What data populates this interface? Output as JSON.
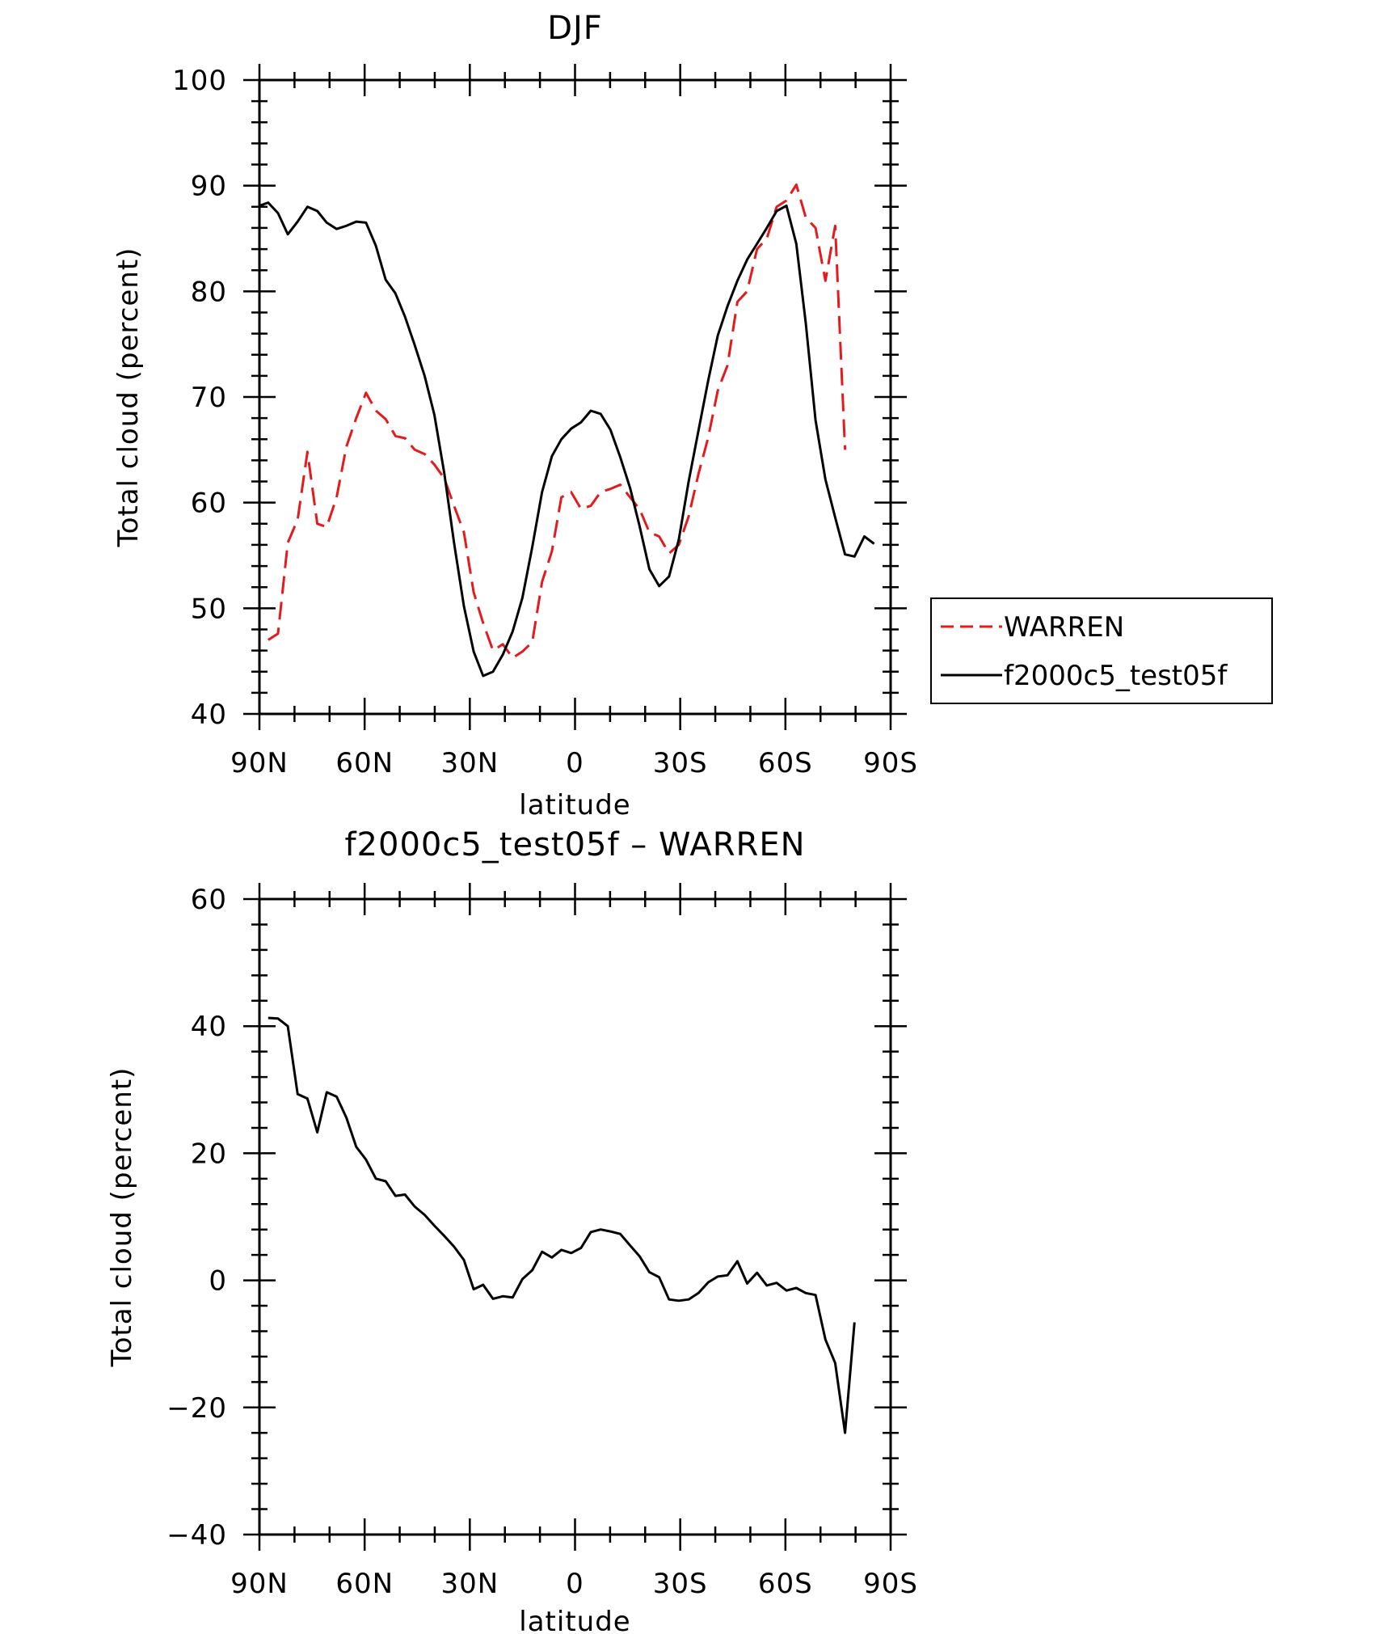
{
  "chart_data": [
    {
      "type": "line",
      "title": "DJF",
      "xlabel": "latitude",
      "ylabel": "Total cloud (percent)",
      "xlim": [
        90,
        -90
      ],
      "ylim": [
        40,
        100
      ],
      "yticks": [
        40,
        50,
        60,
        70,
        80,
        90,
        100
      ],
      "xticks": [
        {
          "value": 90,
          "label": "90N"
        },
        {
          "value": 60,
          "label": "60N"
        },
        {
          "value": 30,
          "label": "30N"
        },
        {
          "value": 0,
          "label": "0"
        },
        {
          "value": -30,
          "label": "30S"
        },
        {
          "value": -60,
          "label": "60S"
        },
        {
          "value": -90,
          "label": "90S"
        }
      ],
      "legend": {
        "placement": "right"
      },
      "series": [
        {
          "name": "WARREN",
          "color": "#e41a1c",
          "dash": "dashed",
          "points": [
            [
              87.5,
              47
            ],
            [
              84.7,
              47.6
            ],
            [
              81.9,
              56.2
            ],
            [
              79.1,
              58.4
            ],
            [
              76.3,
              64.8
            ],
            [
              73.5,
              58
            ],
            [
              70.8,
              57.7
            ],
            [
              68,
              60.5
            ],
            [
              65.2,
              65.3
            ],
            [
              62.4,
              68
            ],
            [
              59.6,
              70.4
            ],
            [
              56.8,
              68.7
            ],
            [
              54,
              67.9
            ],
            [
              51.2,
              66.3
            ],
            [
              48.5,
              66.1
            ],
            [
              45.7,
              65
            ],
            [
              42.9,
              64.6
            ],
            [
              40.1,
              63.6
            ],
            [
              37.3,
              62.3
            ],
            [
              34.5,
              59.7
            ],
            [
              31.7,
              57.2
            ],
            [
              28.9,
              51.5
            ],
            [
              26.2,
              48.6
            ],
            [
              23.4,
              46
            ],
            [
              20.6,
              46.6
            ],
            [
              17.8,
              45.3
            ],
            [
              15,
              45.9
            ],
            [
              12.2,
              46.8
            ],
            [
              9.4,
              52.5
            ],
            [
              6.6,
              55.4
            ],
            [
              3.9,
              60.5
            ],
            [
              1.1,
              61
            ],
            [
              -1.7,
              59.4
            ],
            [
              -4.5,
              59.7
            ],
            [
              -7.3,
              61
            ],
            [
              -10.1,
              61.3
            ],
            [
              -12.9,
              61.7
            ],
            [
              -15.7,
              60.5
            ],
            [
              -18.4,
              59.4
            ],
            [
              -21.2,
              57.2
            ],
            [
              -24,
              56.8
            ],
            [
              -26.8,
              55.2
            ],
            [
              -29.6,
              56
            ],
            [
              -32.4,
              58.7
            ],
            [
              -35.2,
              62.7
            ],
            [
              -38,
              66.2
            ],
            [
              -40.7,
              70.6
            ],
            [
              -43.5,
              73
            ],
            [
              -46.3,
              79
            ],
            [
              -49.1,
              80
            ],
            [
              -51.9,
              84
            ],
            [
              -54.7,
              85
            ],
            [
              -57.5,
              88
            ],
            [
              -60.3,
              88.6
            ],
            [
              -63.1,
              90.1
            ],
            [
              -65.8,
              87
            ],
            [
              -68.6,
              86
            ],
            [
              -71.4,
              81
            ],
            [
              -74.2,
              86.2
            ],
            [
              -77,
              65
            ]
          ]
        },
        {
          "name": "f2000c5_test05f",
          "color": "#000000",
          "dash": "solid",
          "points": [
            [
              90,
              88.1
            ],
            [
              87.5,
              88.4
            ],
            [
              84.7,
              87.4
            ],
            [
              81.9,
              85.4
            ],
            [
              79.1,
              86.6
            ],
            [
              76.3,
              88
            ],
            [
              73.5,
              87.6
            ],
            [
              70.8,
              86.5
            ],
            [
              68,
              85.9
            ],
            [
              65.2,
              86.2
            ],
            [
              62.4,
              86.6
            ],
            [
              59.6,
              86.5
            ],
            [
              56.8,
              84.3
            ],
            [
              54,
              81.1
            ],
            [
              51.2,
              79.8
            ],
            [
              48.5,
              77.6
            ],
            [
              45.7,
              74.9
            ],
            [
              42.9,
              72
            ],
            [
              40.1,
              68.3
            ],
            [
              37.3,
              62.8
            ],
            [
              34.5,
              56.2
            ],
            [
              31.7,
              50.2
            ],
            [
              28.9,
              45.9
            ],
            [
              26.2,
              43.6
            ],
            [
              23.4,
              44
            ],
            [
              20.6,
              45.6
            ],
            [
              17.8,
              47.8
            ],
            [
              15,
              51
            ],
            [
              12.2,
              55.8
            ],
            [
              9.4,
              61
            ],
            [
              6.6,
              64.4
            ],
            [
              3.9,
              66
            ],
            [
              1.1,
              67
            ],
            [
              -1.7,
              67.6
            ],
            [
              -4.5,
              68.7
            ],
            [
              -7.3,
              68.4
            ],
            [
              -10.1,
              66.9
            ],
            [
              -12.9,
              64.3
            ],
            [
              -15.7,
              61.4
            ],
            [
              -18.4,
              57.8
            ],
            [
              -21.2,
              53.7
            ],
            [
              -24,
              52.1
            ],
            [
              -26.8,
              53
            ],
            [
              -29.6,
              56.5
            ],
            [
              -32.4,
              62
            ],
            [
              -35.2,
              66.8
            ],
            [
              -38,
              71.6
            ],
            [
              -40.7,
              75.8
            ],
            [
              -43.5,
              78.6
            ],
            [
              -46.3,
              81
            ],
            [
              -49.1,
              83
            ],
            [
              -51.9,
              84.5
            ],
            [
              -54.7,
              86
            ],
            [
              -57.5,
              87.6
            ],
            [
              -60.3,
              88.1
            ],
            [
              -63.1,
              84.5
            ],
            [
              -65.8,
              77
            ],
            [
              -68.6,
              67.8
            ],
            [
              -71.4,
              62.2
            ],
            [
              -74.2,
              58.6
            ],
            [
              -77,
              55.1
            ],
            [
              -79.7,
              54.9
            ],
            [
              -82.5,
              56.8
            ],
            [
              -85.3,
              56.1
            ]
          ]
        }
      ]
    },
    {
      "type": "line",
      "title": "f2000c5_test05f – WARREN",
      "xlabel": "latitude",
      "ylabel": "Total cloud (percent)",
      "xlim": [
        90,
        -90
      ],
      "ylim": [
        -40,
        60
      ],
      "yticks": [
        -40,
        -20,
        0,
        20,
        40,
        60
      ],
      "ytick_labels": [
        "−40",
        "−20",
        "0",
        "20",
        "40",
        "60"
      ],
      "xticks": [
        {
          "value": 90,
          "label": "90N"
        },
        {
          "value": 60,
          "label": "60N"
        },
        {
          "value": 30,
          "label": "30N"
        },
        {
          "value": 0,
          "label": "0"
        },
        {
          "value": -30,
          "label": "30S"
        },
        {
          "value": -60,
          "label": "60S"
        },
        {
          "value": -90,
          "label": "90S"
        }
      ],
      "series": [
        {
          "color": "#000000",
          "dash": "solid",
          "points": [
            [
              87.5,
              41.3
            ],
            [
              84.7,
              41.2
            ],
            [
              81.9,
              40
            ],
            [
              79.1,
              29.3
            ],
            [
              76.3,
              28.6
            ],
            [
              73.5,
              23.3
            ],
            [
              70.8,
              29.6
            ],
            [
              68,
              28.9
            ],
            [
              65.2,
              25.6
            ],
            [
              62.4,
              21
            ],
            [
              59.6,
              19
            ],
            [
              56.8,
              16
            ],
            [
              54,
              15.6
            ],
            [
              51.2,
              13.3
            ],
            [
              48.5,
              13.5
            ],
            [
              45.7,
              11.6
            ],
            [
              42.9,
              10.3
            ],
            [
              40.1,
              8.6
            ],
            [
              37.3,
              7
            ],
            [
              34.5,
              5.3
            ],
            [
              31.7,
              3.2
            ],
            [
              28.9,
              -1.4
            ],
            [
              26.2,
              -0.7
            ],
            [
              23.4,
              -2.9
            ],
            [
              20.6,
              -2.5
            ],
            [
              17.8,
              -2.7
            ],
            [
              15,
              0.2
            ],
            [
              12.2,
              1.6
            ],
            [
              9.4,
              4.5
            ],
            [
              6.6,
              3.6
            ],
            [
              3.9,
              4.8
            ],
            [
              1.1,
              4.3
            ],
            [
              -1.7,
              5.1
            ],
            [
              -4.5,
              7.6
            ],
            [
              -7.3,
              8
            ],
            [
              -10.1,
              7.7
            ],
            [
              -12.9,
              7.3
            ],
            [
              -15.7,
              5.5
            ],
            [
              -18.4,
              3.8
            ],
            [
              -21.2,
              1.3
            ],
            [
              -24,
              0.5
            ],
            [
              -26.8,
              -3
            ],
            [
              -29.6,
              -3.2
            ],
            [
              -32.4,
              -3
            ],
            [
              -35.2,
              -2
            ],
            [
              -38,
              -0.3
            ],
            [
              -40.7,
              0.6
            ],
            [
              -43.5,
              0.8
            ],
            [
              -46.3,
              3
            ],
            [
              -49.1,
              -0.5
            ],
            [
              -51.9,
              1.2
            ],
            [
              -54.7,
              -0.8
            ],
            [
              -57.5,
              -0.4
            ],
            [
              -60.3,
              -1.6
            ],
            [
              -63.1,
              -1.2
            ],
            [
              -65.8,
              -2
            ],
            [
              -68.6,
              -2.3
            ],
            [
              -71.4,
              -9.3
            ],
            [
              -74.2,
              -13
            ],
            [
              -77,
              -24
            ],
            [
              -79.7,
              -6.6
            ]
          ]
        }
      ]
    }
  ]
}
